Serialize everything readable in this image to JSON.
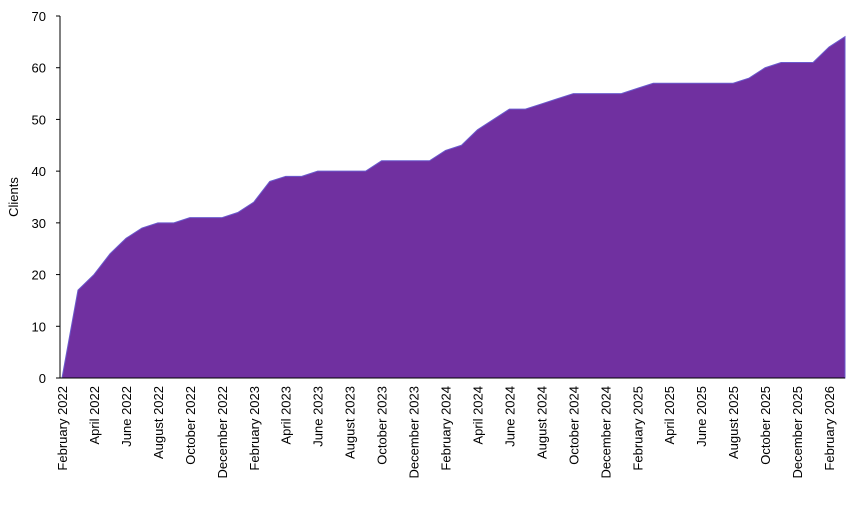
{
  "chart_data": {
    "type": "area",
    "ylabel": "Clients",
    "color": "#7030a0",
    "categories": [
      "February 2022",
      null,
      "April 2022",
      null,
      "June 2022",
      null,
      "August 2022",
      null,
      "October 2022",
      null,
      "December 2022",
      null,
      "February 2023",
      null,
      "April 2023",
      null,
      "June 2023",
      null,
      "August 2023",
      null,
      "October 2023",
      null,
      "December 2023",
      null,
      "February 2024",
      null,
      "April 2024",
      null,
      "June 2024",
      null,
      "August 2024",
      null,
      "October 2024",
      null,
      "December 2024",
      null,
      "February 2025",
      null,
      "April 2025",
      null,
      "June 2025",
      null,
      "August 2025",
      null,
      "October 2025",
      null,
      "December 2025",
      null,
      "February 2026",
      null
    ],
    "values": [
      0,
      17,
      20,
      24,
      27,
      29,
      30,
      30,
      31,
      31,
      31,
      32,
      34,
      38,
      39,
      39,
      40,
      40,
      40,
      40,
      42,
      42,
      42,
      42,
      44,
      45,
      48,
      50,
      52,
      52,
      53,
      54,
      55,
      55,
      55,
      55,
      56,
      57,
      57,
      57,
      57,
      57,
      57,
      58,
      60,
      61,
      61,
      61,
      64,
      66
    ],
    "ylim": [
      0,
      70
    ],
    "yticks": [
      0,
      10,
      20,
      30,
      40,
      50,
      60,
      70
    ]
  }
}
